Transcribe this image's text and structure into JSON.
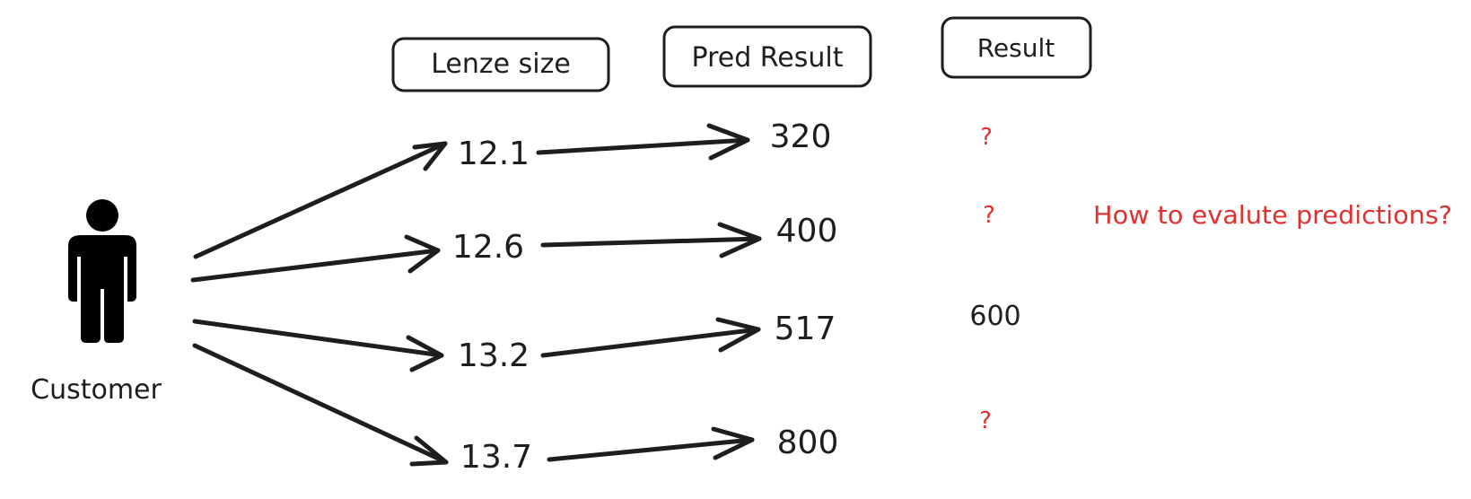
{
  "headers": {
    "lens_size": "Lenze size",
    "pred_result": "Pred Result",
    "result": "Result"
  },
  "customer": {
    "label": "Customer",
    "icon": "person-icon"
  },
  "rows": [
    {
      "lens_size": "12.1",
      "pred_result": "320",
      "result": "?",
      "result_highlight": true
    },
    {
      "lens_size": "12.6",
      "pred_result": "400",
      "result": "?",
      "result_highlight": true
    },
    {
      "lens_size": "13.2",
      "pred_result": "517",
      "result": "600",
      "result_highlight": false
    },
    {
      "lens_size": "13.7",
      "pred_result": "800",
      "result": "?",
      "result_highlight": true
    }
  ],
  "question": "How to evalute predictions?",
  "colors": {
    "ink": "#1e1e1e",
    "accent": "#e03131"
  }
}
